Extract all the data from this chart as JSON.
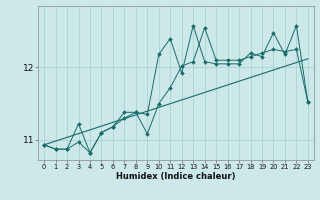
{
  "xlabel": "Humidex (Indice chaleur)",
  "bg_color": "#cce8e8",
  "line_color": "#1a6b6b",
  "grid_color": "#aad4d4",
  "x_min": -0.5,
  "x_max": 23.5,
  "y_min": 10.72,
  "y_max": 12.85,
  "yticks": [
    11,
    12
  ],
  "xticks": [
    0,
    1,
    2,
    3,
    4,
    5,
    6,
    7,
    8,
    9,
    10,
    11,
    12,
    13,
    14,
    15,
    16,
    17,
    18,
    19,
    20,
    21,
    22,
    23
  ],
  "line1_x": [
    0,
    1,
    2,
    3,
    4,
    5,
    6,
    7,
    8,
    9,
    10,
    11,
    12,
    13,
    14,
    15,
    16,
    17,
    18,
    19,
    20,
    21,
    22,
    23
  ],
  "line1_y": [
    10.93,
    10.87,
    10.87,
    10.97,
    10.82,
    11.1,
    11.18,
    11.3,
    11.38,
    11.08,
    11.5,
    11.72,
    12.02,
    12.08,
    12.55,
    12.1,
    12.1,
    12.1,
    12.15,
    12.2,
    12.25,
    12.22,
    12.25,
    11.52
  ],
  "line2_x": [
    0,
    1,
    2,
    3,
    4,
    5,
    6,
    7,
    8,
    9,
    10,
    11,
    12,
    13,
    14,
    15,
    16,
    17,
    18,
    19,
    20,
    21,
    22,
    23
  ],
  "line2_y": [
    10.93,
    10.87,
    10.87,
    11.22,
    10.82,
    11.1,
    11.18,
    11.38,
    11.38,
    11.35,
    12.18,
    12.4,
    11.92,
    12.58,
    12.08,
    12.05,
    12.05,
    12.05,
    12.2,
    12.15,
    12.48,
    12.18,
    12.58,
    11.52
  ],
  "trend_x": [
    0,
    23
  ],
  "trend_y": [
    10.93,
    12.12
  ]
}
